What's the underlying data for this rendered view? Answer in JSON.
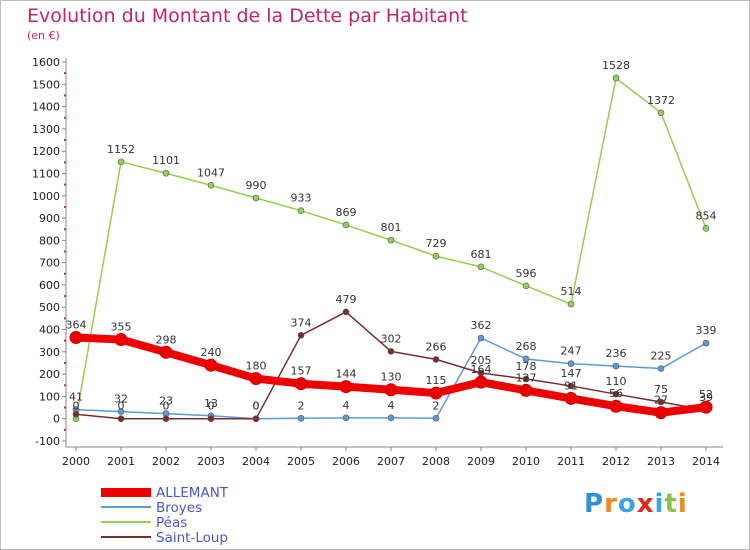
{
  "title": "Evolution du Montant de la Dette par Habitant",
  "subtitle": "(en €)",
  "logo": {
    "text": "Proxiti",
    "colors": [
      "#2f8fd8",
      "#f08a1c",
      "#3aa6dd",
      "#e8241c",
      "#3aa6dd",
      "#8bc34a",
      "#f08a1c"
    ]
  },
  "chart_data": {
    "type": "line",
    "x": [
      "2000",
      "2001",
      "2002",
      "2003",
      "2004",
      "2005",
      "2006",
      "2007",
      "2008",
      "2009",
      "2010",
      "2011",
      "2012",
      "2013",
      "2014"
    ],
    "ylim": [
      -100,
      1600
    ],
    "yticks": [
      "-100",
      "0",
      "100",
      "200",
      "300",
      "400",
      "500",
      "600",
      "700",
      "800",
      "900",
      "1000",
      "1100",
      "1200",
      "1300",
      "1400",
      "1500",
      "1600"
    ],
    "grid": false,
    "legend_position": "bottom-left",
    "series": [
      {
        "name": "ALLEMANT",
        "color": "#ee0000",
        "values": [
          364,
          355,
          298,
          240,
          180,
          157,
          144,
          130,
          115,
          164,
          127,
          91,
          56,
          27,
          52
        ],
        "labels": [
          "364",
          "355",
          "298",
          "240",
          "180",
          "157",
          "144",
          "130",
          "115",
          "164",
          "127",
          "91",
          "56",
          "27",
          "52"
        ]
      },
      {
        "name": "Broyes",
        "color": "#5b9bd5",
        "values": [
          41,
          32,
          23,
          13,
          0,
          2,
          4,
          4,
          2,
          362,
          268,
          247,
          236,
          225,
          339
        ],
        "labels": [
          "41",
          "32",
          "23",
          "13",
          "0",
          "2",
          "4",
          "4",
          "2",
          "362",
          "268",
          "247",
          "236",
          "225",
          "339"
        ]
      },
      {
        "name": "Péas",
        "color": "#92d050",
        "values": [
          0,
          1152,
          1101,
          1047,
          990,
          933,
          869,
          801,
          729,
          681,
          596,
          514,
          1528,
          1372,
          854
        ],
        "labels": [
          "0",
          "1152",
          "1101",
          "1047",
          "990",
          "933",
          "869",
          "801",
          "729",
          "681",
          "596",
          "514",
          "1528",
          "1372",
          "854"
        ]
      },
      {
        "name": "Saint-Loup",
        "color": "#7b2c2c",
        "values": [
          20,
          0,
          0,
          0,
          0,
          374,
          479,
          302,
          266,
          205,
          178,
          147,
          110,
          75,
          39
        ],
        "labels": [
          "",
          "0",
          "0",
          "0",
          "0",
          "374",
          "479",
          "302",
          "266",
          "205",
          "178",
          "147",
          "110",
          "75",
          "39"
        ]
      }
    ]
  }
}
